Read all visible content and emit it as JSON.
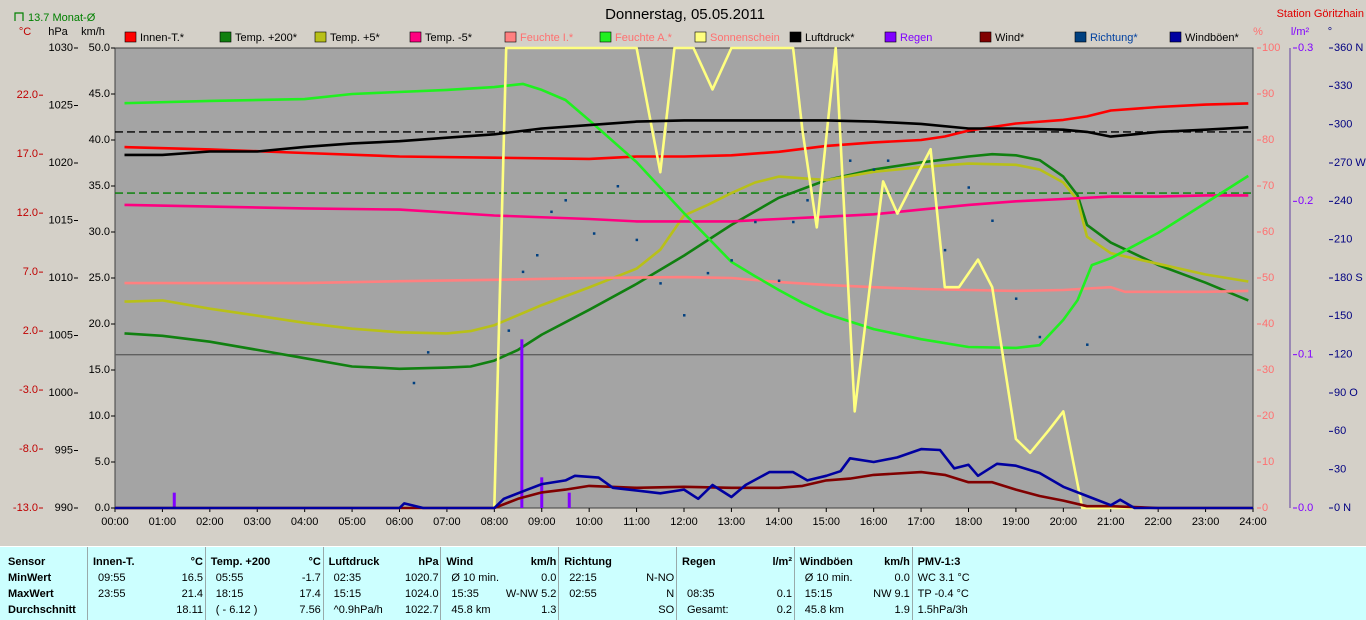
{
  "chart_data": {
    "type": "line",
    "title": "Donnerstag, 05.05.2011",
    "station": "Station Göritzhain",
    "xlim": [
      0,
      24
    ],
    "xticks": [
      {
        "value": 0,
        "label": "00:00"
      },
      {
        "value": 1,
        "label": "01:00"
      },
      {
        "value": 2,
        "label": "02:00"
      },
      {
        "value": 3,
        "label": "03:00"
      },
      {
        "value": 4,
        "label": "04:00"
      },
      {
        "value": 5,
        "label": "05:00"
      },
      {
        "value": 6,
        "label": "06:00"
      },
      {
        "value": 7,
        "label": "07:00"
      },
      {
        "value": 8,
        "label": "08:00"
      },
      {
        "value": 9,
        "label": "09:00"
      },
      {
        "value": 10,
        "label": "10:00"
      },
      {
        "value": 11,
        "label": "11:00"
      },
      {
        "value": 12,
        "label": "12:00"
      },
      {
        "value": 13,
        "label": "13:00"
      },
      {
        "value": 14,
        "label": "14:00"
      },
      {
        "value": 15,
        "label": "15:00"
      },
      {
        "value": 16,
        "label": "16:00"
      },
      {
        "value": 17,
        "label": "17:00"
      },
      {
        "value": 18,
        "label": "18:00"
      },
      {
        "value": 19,
        "label": "19:00"
      },
      {
        "value": 20,
        "label": "20:00"
      },
      {
        "value": 21,
        "label": "21:00"
      },
      {
        "value": 22,
        "label": "22:00"
      },
      {
        "value": 23,
        "label": "23:00"
      },
      {
        "value": 24,
        "label": "24:00"
      }
    ],
    "axes": [
      {
        "title": "°C",
        "side": "left",
        "lim": [
          -13,
          26
        ],
        "color": "#c00000",
        "legend_color": "#000000",
        "ticks": [
          {
            "value": -13,
            "label": "-13.0"
          },
          {
            "value": -8,
            "label": "-8.0"
          },
          {
            "value": -3,
            "label": "-3.0"
          },
          {
            "value": 2,
            "label": "2.0"
          },
          {
            "value": 7,
            "label": "7.0"
          },
          {
            "value": 12,
            "label": "12.0"
          },
          {
            "value": 17,
            "label": "17.0"
          },
          {
            "value": 22,
            "label": "22.0"
          }
        ]
      },
      {
        "title": "hPa",
        "side": "left",
        "lim": [
          990,
          1030
        ],
        "color": "#000000",
        "legend_color": "#000000",
        "ticks": [
          990,
          995,
          1000,
          1005,
          1010,
          1015,
          1020,
          1025,
          1030
        ]
      },
      {
        "title": "km/h",
        "side": "left",
        "lim": [
          0,
          50
        ],
        "color": "#000000",
        "legend_color": "#000000",
        "ticks": [
          {
            "value": 0,
            "label": "0.0"
          },
          {
            "value": 5,
            "label": "5.0"
          },
          {
            "value": 10,
            "label": "10.0"
          },
          {
            "value": 15,
            "label": "15.0"
          },
          {
            "value": 20,
            "label": "20.0"
          },
          {
            "value": 25,
            "label": "25.0"
          },
          {
            "value": 30,
            "label": "30.0"
          },
          {
            "value": 35,
            "label": "35.0"
          },
          {
            "value": 40,
            "label": "40.0"
          },
          {
            "value": 45,
            "label": "45.0"
          },
          {
            "value": 50,
            "label": "50.0"
          }
        ]
      },
      {
        "title": "%",
        "side": "right",
        "lim": [
          0,
          100
        ],
        "color": "#ff7070",
        "legend_color": "#ff7070",
        "ticks": [
          0,
          10,
          20,
          30,
          40,
          50,
          60,
          70,
          80,
          90,
          100
        ]
      },
      {
        "title": "l/m²",
        "side": "right",
        "lim": [
          0,
          0.3
        ],
        "color": "#8000ff",
        "legend_color": "#8000ff",
        "ticks": [
          {
            "value": 0,
            "label": "0.0"
          },
          0.1,
          0.2,
          0.3
        ]
      },
      {
        "title": "°",
        "side": "right",
        "lim": [
          0,
          360
        ],
        "color": "#000080",
        "legend_color": "#0040a0",
        "ticks": [
          {
            "value": 0,
            "label": "0 N"
          },
          30,
          60,
          {
            "value": 90,
            "label": "90 O"
          },
          120,
          150,
          {
            "value": 180,
            "label": "180 S"
          },
          210,
          240,
          {
            "value": 270,
            "label": "270 W"
          },
          300,
          330,
          {
            "value": 360,
            "label": "360 N"
          }
        ]
      }
    ],
    "reference_lines": [
      {
        "value": 13.7,
        "axis": 0,
        "label": "13.7 Monat-Ø",
        "color": "#008000",
        "dashed": true
      },
      {
        "value": 1022.7,
        "axis": 1,
        "color": "#000000",
        "dashed": true
      },
      {
        "value": 0,
        "axis": 0,
        "color": "#606060",
        "dashed": false
      }
    ],
    "series": [
      {
        "name": "Innen-T.*",
        "color": "#ff0000",
        "axis": 0,
        "style": "line",
        "x": [
          0.2,
          2,
          4,
          6,
          8,
          10,
          11,
          12,
          13,
          14,
          15,
          16,
          17,
          17.5,
          18,
          19,
          20,
          20.5,
          21,
          22,
          23,
          23.9
        ],
        "values": [
          17.6,
          17.4,
          17.1,
          16.8,
          16.7,
          16.6,
          16.8,
          16.8,
          16.9,
          17.2,
          17.7,
          18.0,
          18.2,
          18.5,
          19.0,
          19.6,
          19.9,
          20.2,
          20.7,
          21.0,
          21.2,
          21.3
        ]
      },
      {
        "name": "Temp. +200*",
        "color": "#108010",
        "axis": 0,
        "style": "line",
        "x": [
          0.2,
          1,
          2,
          3,
          4,
          5,
          5.5,
          6,
          7,
          7.5,
          8,
          8.5,
          9,
          10,
          11,
          12,
          13,
          14,
          15,
          16,
          17,
          18,
          18.5,
          19,
          19.5,
          20,
          20.3,
          20.5,
          21,
          22,
          23,
          23.9
        ],
        "values": [
          1.8,
          1.6,
          1.1,
          0.4,
          -0.3,
          -1.0,
          -1.1,
          -1.2,
          -1.1,
          -1.0,
          -0.5,
          0.4,
          1.7,
          3.8,
          6.0,
          8.4,
          11.0,
          13.3,
          14.8,
          15.7,
          16.3,
          16.8,
          17.0,
          16.9,
          16.5,
          15.1,
          13.5,
          11.0,
          9.5,
          7.6,
          6.1,
          4.6
        ]
      },
      {
        "name": "Temp. +5*",
        "color": "#b8c018",
        "axis": 0,
        "style": "line",
        "x": [
          0.2,
          1,
          2,
          3,
          4,
          5,
          6,
          7,
          7.5,
          8,
          9,
          10,
          11,
          11.5,
          12,
          12.5,
          13,
          13.5,
          14,
          15,
          16,
          17,
          18,
          19,
          19.5,
          20,
          20.3,
          20.5,
          21,
          22,
          23,
          23.9
        ],
        "values": [
          4.5,
          4.6,
          3.9,
          3.3,
          2.7,
          2.2,
          1.9,
          1.8,
          2.0,
          2.5,
          4.2,
          5.7,
          7.3,
          8.9,
          11.8,
          12.7,
          13.7,
          14.6,
          15.1,
          14.8,
          15.5,
          15.9,
          16.2,
          16.1,
          15.7,
          14.6,
          13.1,
          10.0,
          8.6,
          7.7,
          6.8,
          6.2
        ]
      },
      {
        "name": "Temp. -5*",
        "color": "#ff0080",
        "axis": 0,
        "style": "line",
        "x": [
          0.2,
          4,
          6,
          8,
          10,
          11,
          12,
          13,
          14,
          15,
          16,
          17,
          18,
          19,
          20,
          21,
          22,
          23,
          23.9
        ],
        "values": [
          12.7,
          12.4,
          12.3,
          11.8,
          11.5,
          11.3,
          11.3,
          11.3,
          11.5,
          11.7,
          11.9,
          12.3,
          12.7,
          13.0,
          13.2,
          13.4,
          13.4,
          13.5,
          13.5
        ]
      },
      {
        "name": "Feuchte I.*",
        "color": "#ff8080",
        "axis": 3,
        "style": "line",
        "x": [
          0.2,
          4,
          6,
          8,
          10,
          12,
          13,
          14,
          15,
          16,
          17,
          18,
          19,
          20,
          21,
          21.3,
          22,
          23,
          23.9
        ],
        "values": [
          48.9,
          48.9,
          49.3,
          49.6,
          50.0,
          50.2,
          50.0,
          49.1,
          48.5,
          48.0,
          47.6,
          47.4,
          47.2,
          47.4,
          48.0,
          47.0,
          47.0,
          47.0,
          47.2
        ]
      },
      {
        "name": "Feuchte A.*",
        "color": "#20f020",
        "axis": 3,
        "style": "line",
        "x": [
          0.2,
          2,
          4,
          5,
          7,
          8,
          8.6,
          9,
          9.5,
          10,
          11,
          12,
          13,
          13.5,
          14,
          14.5,
          15,
          16,
          17,
          18,
          19,
          19.5,
          20,
          20.3,
          20.6,
          21,
          22,
          23,
          23.9
        ],
        "values": [
          88.0,
          88.5,
          88.9,
          90.0,
          90.9,
          91.5,
          92.2,
          90.9,
          88.7,
          84.3,
          75.2,
          64.1,
          53.5,
          50.4,
          47.4,
          44.6,
          42.2,
          38.9,
          36.7,
          35.0,
          34.8,
          35.4,
          40.9,
          45.2,
          52.8,
          54.3,
          59.8,
          66.3,
          72.2
        ]
      },
      {
        "name": "Sonnenschein",
        "color": "#ffff80",
        "axis": 3,
        "style": "line",
        "x": [
          0,
          8,
          8.25,
          11.0,
          11.5,
          11.8,
          12.2,
          12.6,
          13.0,
          14.3,
          14.5,
          14.8,
          15.2,
          15.6,
          16.0,
          16.2,
          16.5,
          16.9,
          17.2,
          17.5,
          17.8,
          18.2,
          18.5,
          19.0,
          19.3,
          19.7,
          20.0,
          20.4,
          24
        ],
        "values": [
          0,
          0,
          100,
          100,
          73,
          100,
          100,
          91,
          100,
          100,
          82,
          61,
          100,
          21,
          55,
          71,
          64,
          72,
          78,
          48,
          48,
          54,
          48,
          15,
          12,
          17,
          21,
          0,
          0
        ]
      },
      {
        "name": "Luftdruck*",
        "color": "#000000",
        "axis": 1,
        "style": "line",
        "x": [
          0.2,
          1,
          2,
          3,
          4,
          5,
          6,
          7,
          8,
          9,
          10,
          11,
          12,
          13,
          14,
          15,
          16,
          17,
          18,
          19,
          20,
          20.5,
          21,
          21.5,
          22,
          23,
          23.9
        ],
        "values": [
          1020.7,
          1020.7,
          1021.0,
          1021.0,
          1021.4,
          1021.7,
          1021.9,
          1022.2,
          1022.5,
          1023.0,
          1023.3,
          1023.6,
          1023.7,
          1023.7,
          1023.7,
          1023.7,
          1023.6,
          1023.4,
          1023.0,
          1023.0,
          1022.9,
          1022.7,
          1022.3,
          1022.5,
          1022.7,
          1022.9,
          1023.1
        ]
      },
      {
        "name": "Regen",
        "color": "#8000ff",
        "axis": 4,
        "style": "bars",
        "x": [
          1.25,
          8.58,
          9.0,
          9.58
        ],
        "values": [
          0.01,
          0.11,
          0.02,
          0.01
        ]
      },
      {
        "name": "Wind*",
        "color": "#800000",
        "axis": 2,
        "style": "line",
        "x": [
          0,
          8,
          8.5,
          9,
          9.5,
          10,
          11,
          12,
          13,
          14,
          14.5,
          15,
          15.5,
          16,
          17,
          17.5,
          18,
          18.5,
          19,
          19.5,
          20,
          20.5,
          21,
          22,
          24
        ],
        "values": [
          0,
          0,
          1.0,
          1.7,
          2.0,
          2.4,
          2.2,
          2.3,
          2.2,
          2.2,
          2.4,
          3.0,
          3.2,
          3.6,
          3.9,
          3.6,
          2.8,
          2.8,
          2.0,
          1.3,
          0.8,
          0.2,
          0.2,
          0,
          0
        ]
      },
      {
        "name": "Richtung*",
        "color": "#004080",
        "axis": 5,
        "style": "dots",
        "x": [
          6.3,
          6.6,
          8.3,
          8.6,
          8.9,
          9.2,
          9.5,
          10.1,
          10.6,
          11.0,
          11.5,
          12.0,
          12.5,
          13.0,
          13.5,
          14.0,
          14.3,
          14.6,
          15.5,
          16.0,
          16.3,
          17.5,
          18.0,
          18.5,
          19.0,
          19.5,
          20.5
        ],
        "values": [
          98,
          122,
          139,
          185,
          198,
          232,
          241,
          215,
          252,
          210,
          176,
          151,
          184,
          194,
          224,
          178,
          224,
          241,
          272,
          265,
          272,
          202,
          251,
          225,
          164,
          134,
          128
        ]
      },
      {
        "name": "Windböen*",
        "color": "#0000a0",
        "axis": 2,
        "style": "line",
        "x": [
          0,
          6,
          6.1,
          6.5,
          8,
          8.2,
          8.7,
          9,
          9.5,
          9.7,
          10.2,
          10.5,
          11.5,
          12,
          12.3,
          12.6,
          13,
          13.3,
          13.8,
          14.3,
          14.6,
          15,
          15.3,
          15.5,
          16,
          16.5,
          17,
          17.4,
          17.7,
          18,
          18.2,
          18.6,
          19,
          19.5,
          20,
          20.5,
          21,
          21.2,
          21.5,
          24
        ],
        "values": [
          0,
          0,
          0.5,
          0,
          0,
          1.0,
          2.0,
          2.6,
          3.0,
          3.5,
          3.3,
          2.2,
          1.6,
          2.0,
          1.0,
          2.5,
          1.2,
          2.5,
          3.9,
          3.9,
          3.0,
          3.5,
          4.0,
          5.4,
          5.0,
          5.5,
          6.4,
          6.3,
          4.3,
          4.7,
          3.5,
          4.8,
          4.6,
          3.8,
          2.3,
          1.3,
          0.3,
          0.9,
          0,
          0
        ]
      }
    ]
  },
  "stats_table": {
    "header": "Sensor",
    "row_labels": [
      "MinWert",
      "MaxWert",
      "Durchschnitt"
    ],
    "groups": [
      {
        "name": "Innen-T.",
        "unit": "°C",
        "rows": [
          [
            "09:55",
            "16.5"
          ],
          [
            "23:55",
            "21.4"
          ],
          [
            null,
            "18.11"
          ]
        ]
      },
      {
        "name": "Temp. +200",
        "unit": "°C",
        "rows": [
          [
            "05:55",
            "-1.7"
          ],
          [
            "18:15",
            "17.4"
          ],
          [
            "( - 6.12 )",
            "7.56"
          ]
        ]
      },
      {
        "name": "Luftdruck",
        "unit": "hPa",
        "rows": [
          [
            "02:35",
            "1020.7"
          ],
          [
            "15:15",
            "1024.0"
          ],
          [
            "^0.9hPa/h",
            "1022.7"
          ]
        ]
      },
      {
        "name": "Wind",
        "unit": "km/h",
        "rows": [
          [
            "Ø 10 min.",
            "0.0"
          ],
          [
            "15:35",
            "W-NW 5.2"
          ],
          [
            "45.8 km",
            "1.3"
          ]
        ]
      },
      {
        "name": "Richtung",
        "rows": [
          [
            "22:15",
            "N-NO"
          ],
          [
            "02:55",
            "N"
          ],
          [
            null,
            "SO"
          ]
        ]
      },
      {
        "name": "Regen",
        "unit": "l/m²",
        "rows": [
          [
            null,
            null
          ],
          [
            "08:35",
            "0.1"
          ],
          [
            "Gesamt:",
            "0.2"
          ]
        ]
      },
      {
        "name": "Windböen",
        "unit": "km/h",
        "rows": [
          [
            "Ø 10 min.",
            "0.0"
          ],
          [
            "15:15",
            "NW 9.1"
          ],
          [
            "45.8 km",
            "1.9"
          ]
        ]
      },
      {
        "name": "PMV-1:3",
        "rows": [
          [
            "WC 3.1 °C",
            null
          ],
          [
            "TP -0.4 °C",
            null
          ],
          [
            "1.5hPa/3h",
            null
          ]
        ]
      }
    ]
  }
}
